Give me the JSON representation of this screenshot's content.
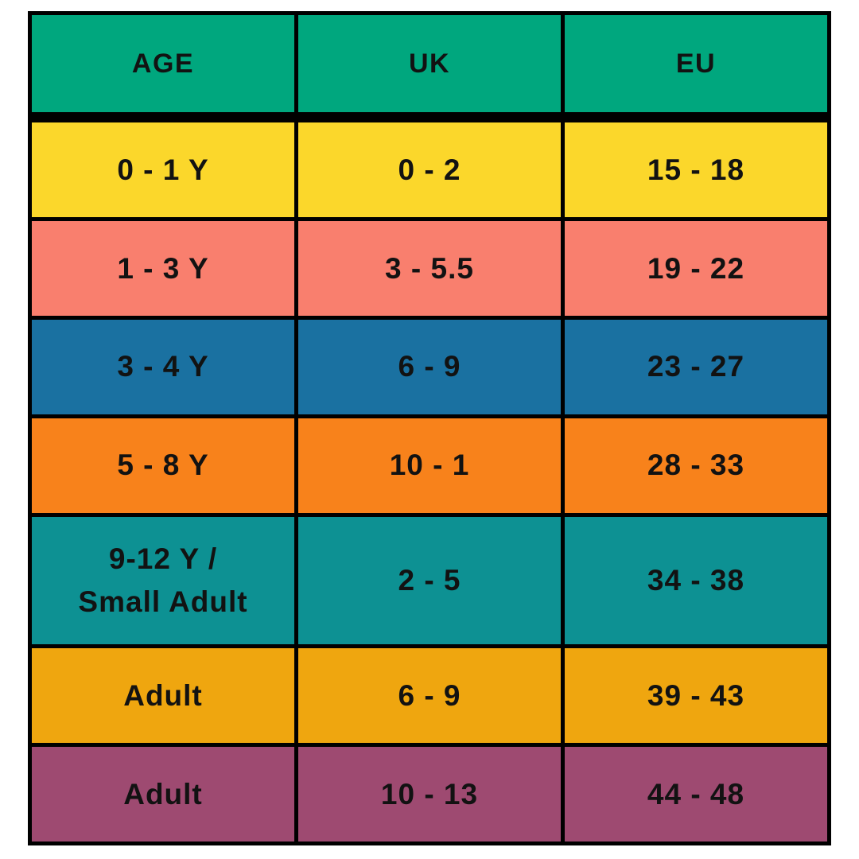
{
  "page": {
    "background": "#ffffff",
    "text_color": "#121212",
    "border_color": "#000000"
  },
  "table": {
    "header": {
      "bg": "#00a77e",
      "labels": {
        "age": "AGE",
        "uk": "UK",
        "eu": "EU"
      }
    },
    "rows": [
      {
        "age": "0 - 1 Y",
        "uk": "0 - 2",
        "eu": "15 - 18",
        "bg": "#fbd72b"
      },
      {
        "age": "1 - 3 Y",
        "uk": "3 - 5.5",
        "eu": "19 - 22",
        "bg": "#f97f6e"
      },
      {
        "age": "3 - 4 Y",
        "uk": "6 - 9",
        "eu": "23 - 27",
        "bg": "#1a71a1"
      },
      {
        "age": "5 - 8 Y",
        "uk": "10 - 1",
        "eu": "28 - 33",
        "bg": "#f8821b"
      },
      {
        "age": "9-12 Y /\nSmall Adult",
        "uk": "2 - 5",
        "eu": "34 - 38",
        "bg": "#0d9193"
      },
      {
        "age": "Adult",
        "uk": "6 - 9",
        "eu": "39 - 43",
        "bg": "#efa60f"
      },
      {
        "age": "Adult",
        "uk": "10 - 13",
        "eu": "44 - 48",
        "bg": "#9e4a71"
      }
    ]
  }
}
